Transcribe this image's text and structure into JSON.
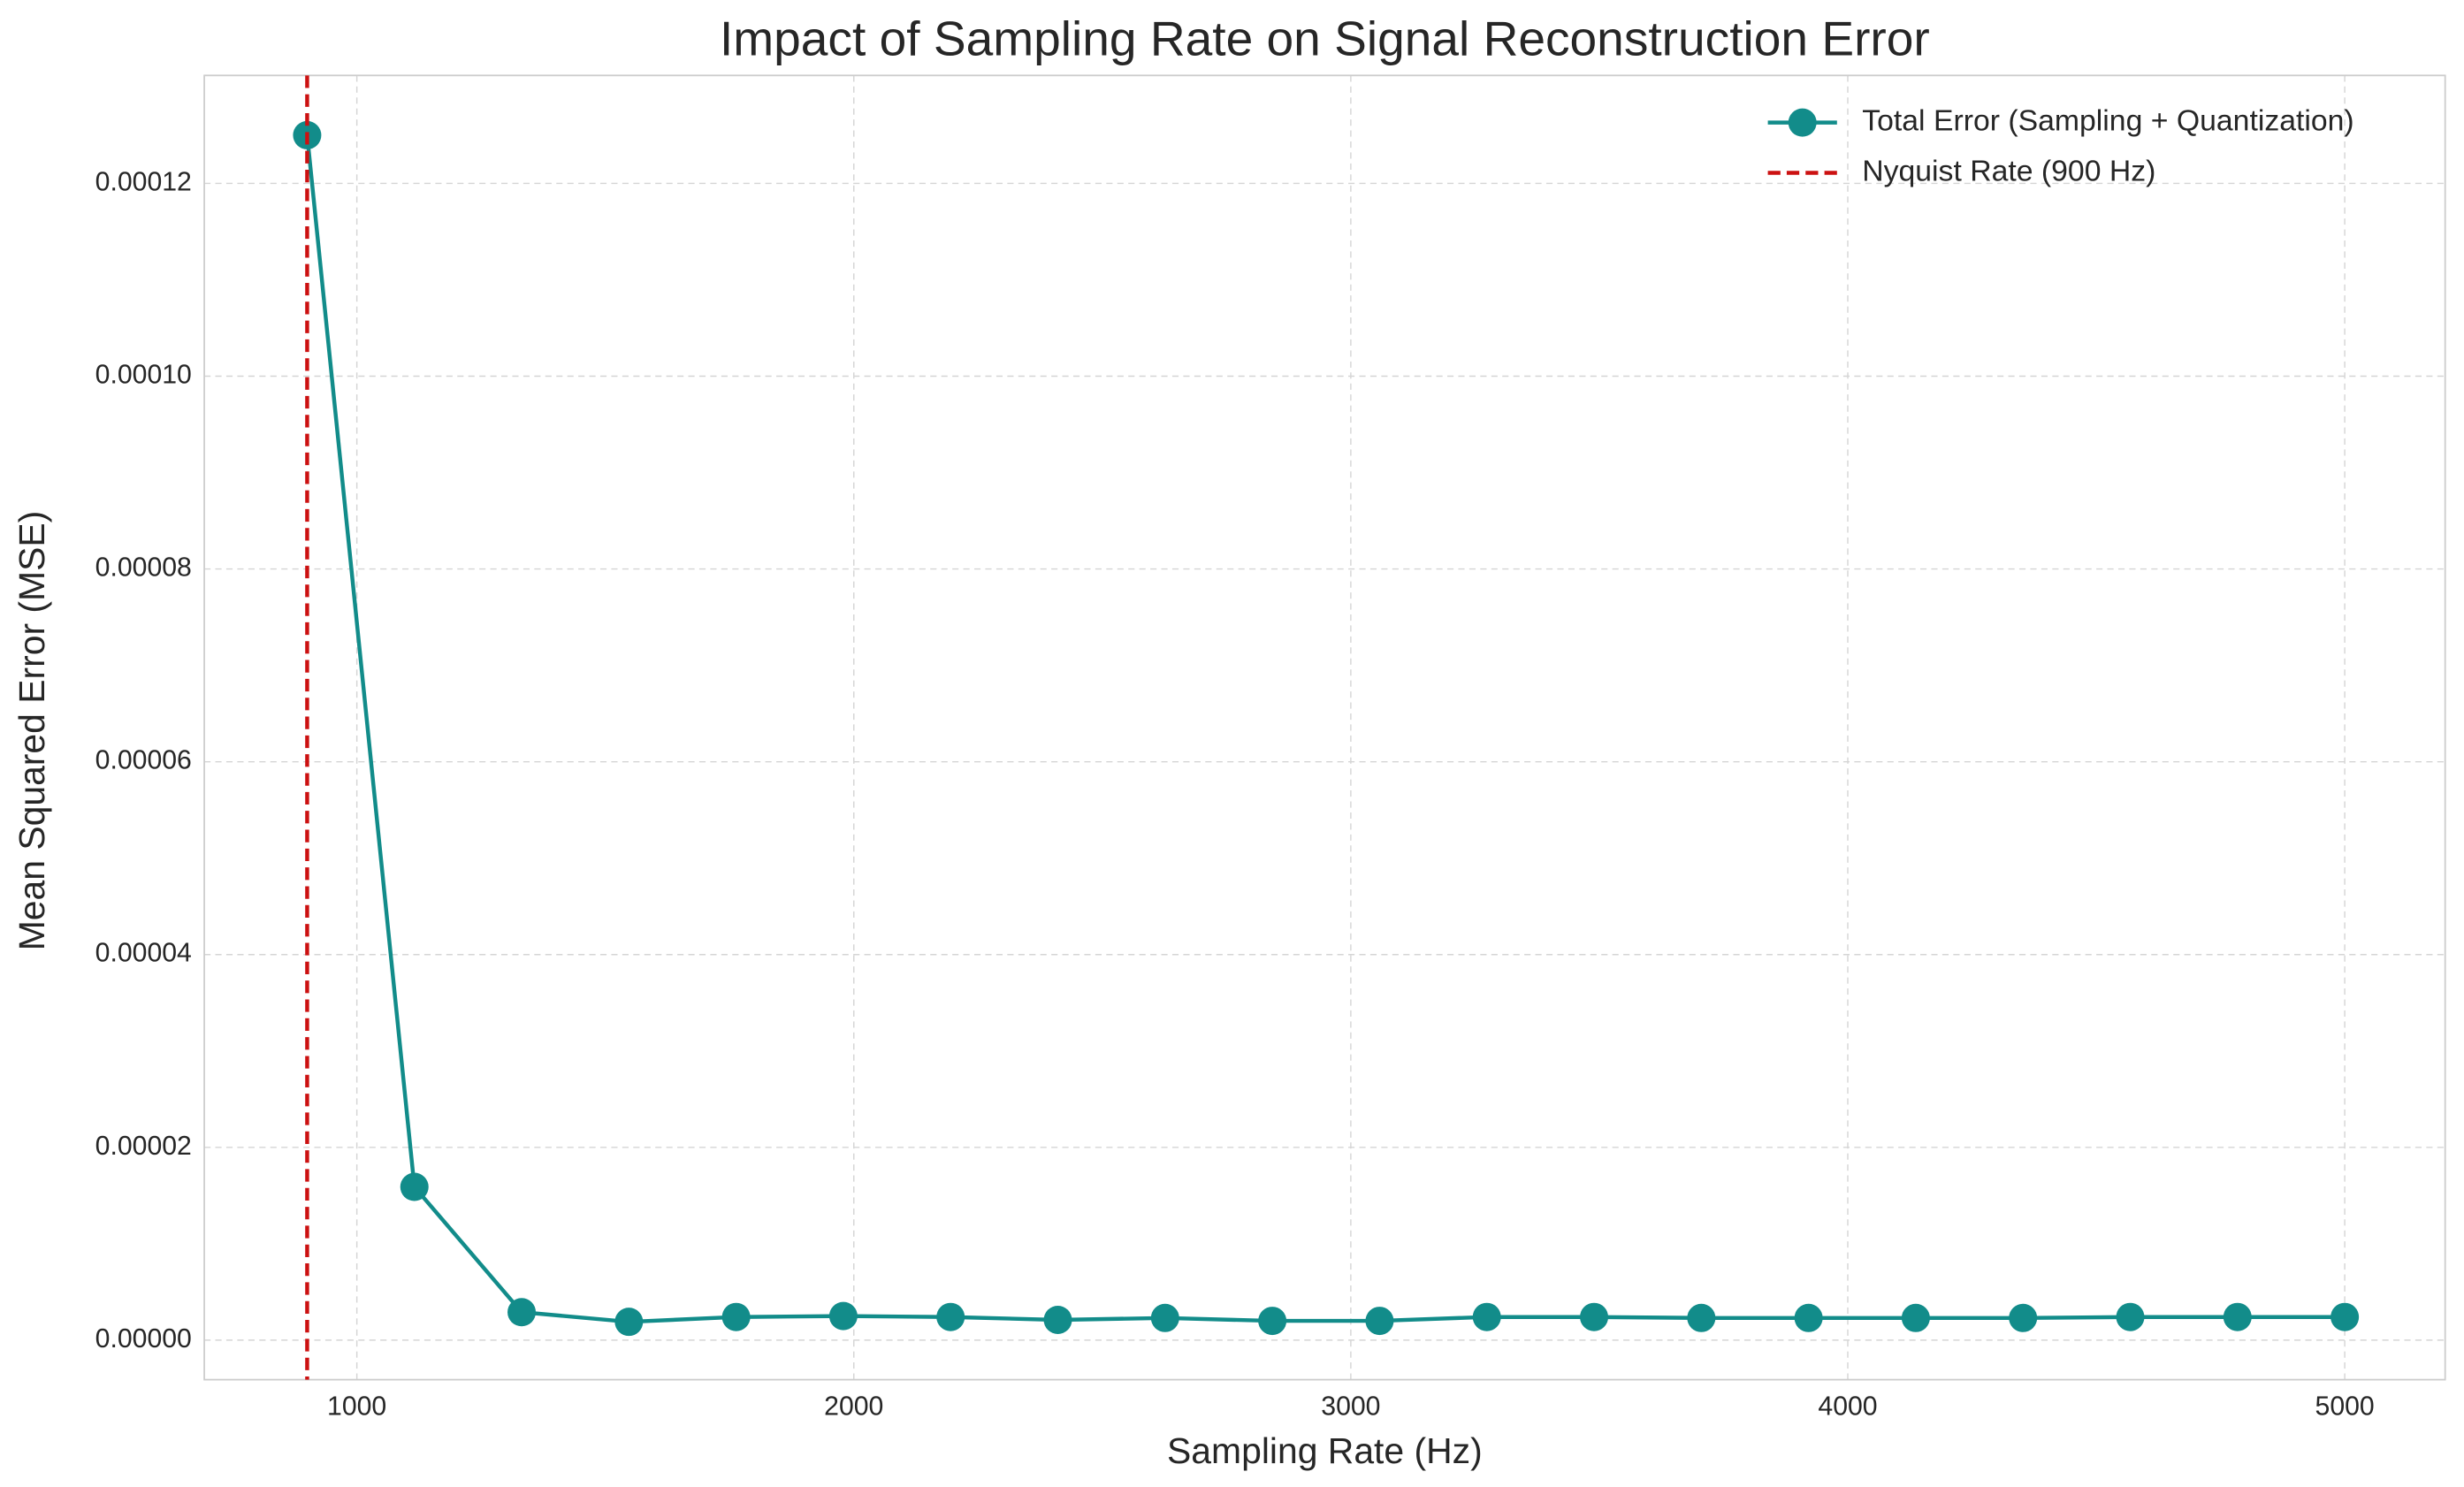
{
  "chart_data": {
    "type": "line",
    "title": "Impact of Sampling Rate on Signal Reconstruction Error",
    "x_label": "Sampling Rate (Hz)",
    "y_label": "Mean Squared Error (MSE)",
    "x": [
      900,
      1115.8,
      1331.6,
      1547.4,
      1763.2,
      1978.9,
      2194.7,
      2410.5,
      2626.3,
      2842.1,
      3057.9,
      3273.7,
      3489.5,
      3705.3,
      3921.1,
      4136.8,
      4352.6,
      4568.4,
      4784.2,
      5000
    ],
    "series": [
      {
        "name": "Total Error (Sampling + Quantization)",
        "color": "#128c8a",
        "values": [
          0.000125,
          1.59e-05,
          2.9e-06,
          1.9e-06,
          2.4e-06,
          2.5e-06,
          2.4e-06,
          2.1e-06,
          2.3e-06,
          2e-06,
          2e-06,
          2.4e-06,
          2.4e-06,
          2.3e-06,
          2.3e-06,
          2.3e-06,
          2.3e-06,
          2.4e-06,
          2.4e-06,
          2.4e-06
        ]
      }
    ],
    "vline": {
      "x": 900,
      "name": "Nyquist Rate (900 Hz)",
      "color": "#cc1111"
    },
    "xlim": [
      693,
      5202
    ],
    "ylim": [
      -4.1e-06,
      0.0001312
    ],
    "xticks": [
      1000,
      2000,
      3000,
      4000,
      5000
    ],
    "yticks": [
      {
        "value": 0,
        "label": "0.00000"
      },
      {
        "value": 2e-05,
        "label": "0.00002"
      },
      {
        "value": 4e-05,
        "label": "0.00004"
      },
      {
        "value": 6e-05,
        "label": "0.00006"
      },
      {
        "value": 8e-05,
        "label": "0.00008"
      },
      {
        "value": 0.0001,
        "label": "0.00010"
      },
      {
        "value": 0.00012,
        "label": "0.00012"
      }
    ],
    "grid": true,
    "legend": "upper right"
  }
}
